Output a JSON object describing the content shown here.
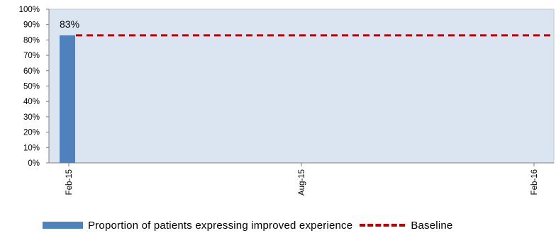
{
  "chart_data": {
    "type": "bar",
    "y_ticks": [
      "0%",
      "10%",
      "20%",
      "30%",
      "40%",
      "50%",
      "60%",
      "70%",
      "80%",
      "90%",
      "100%"
    ],
    "ylim": [
      0,
      100
    ],
    "x_tick_labels": [
      "Feb-15",
      "Aug-15",
      "Feb-16"
    ],
    "categories": [
      "Feb-15"
    ],
    "series": [
      {
        "name": "Proportion of patients expressing improved experience",
        "values": [
          83
        ],
        "data_labels": [
          "83%"
        ],
        "color": "#4f81bd"
      },
      {
        "name": "Baseline",
        "type": "line",
        "style": "dashed",
        "value": 83,
        "color": "#c00000"
      }
    ],
    "grid": false,
    "legend": "bottom",
    "plot_background": "#dbe5f1"
  }
}
